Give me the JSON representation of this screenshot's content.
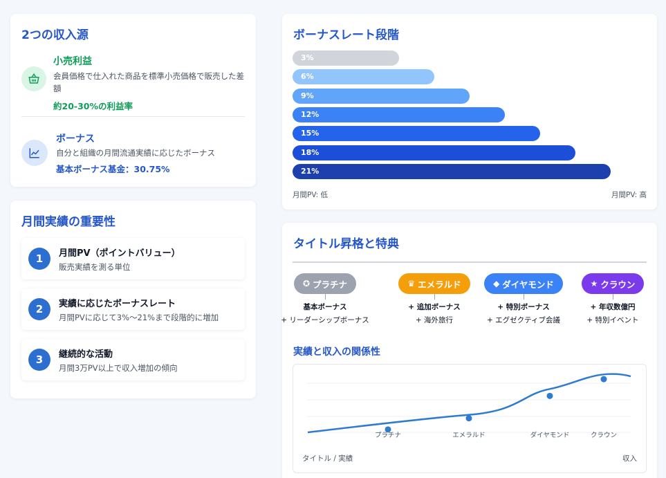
{
  "income": {
    "title": "2つの収入源",
    "retail": {
      "title": "小売利益",
      "desc": "会員価格で仕入れた商品を標準小売価格で販売した差額",
      "highlight": "約20-30%の利益率",
      "icon": "basket-icon",
      "color": "#0f9d58"
    },
    "bonus": {
      "title": "ボーナス",
      "desc": "自分と組織の月間流通実績に応じたボーナス",
      "highlight": "基本ボーナス基金：30.75%",
      "icon": "chart-line-icon",
      "color": "#2557c9"
    }
  },
  "importance": {
    "title": "月間実績の重要性",
    "steps": [
      {
        "num": "1",
        "title": "月間PV（ポイントバリュー）",
        "desc": "販売実績を測る単位"
      },
      {
        "num": "2",
        "title": "実績に応じたボーナスレート",
        "desc": "月間PVに応じて3%〜21%まで段階的に増加"
      },
      {
        "num": "3",
        "title": "継続的な活動",
        "desc": "月間3万PV以上で収入増加の傾向"
      }
    ]
  },
  "rates": {
    "title": "ボーナスレート段階",
    "axis_low": "月間PV: 低",
    "axis_high": "月間PV: 高",
    "bars": [
      {
        "label": "3%",
        "value": 3,
        "color": "#d1d5db"
      },
      {
        "label": "6%",
        "value": 6,
        "color": "#93c5fd"
      },
      {
        "label": "9%",
        "value": 9,
        "color": "#60a5fa"
      },
      {
        "label": "12%",
        "value": 12,
        "color": "#3b82f6"
      },
      {
        "label": "15%",
        "value": 15,
        "color": "#2563eb"
      },
      {
        "label": "18%",
        "value": 18,
        "color": "#1d4ed8"
      },
      {
        "label": "21%",
        "value": 21,
        "color": "#1e40af"
      }
    ]
  },
  "titles": {
    "title": "タイトル昇格と特典",
    "badges": [
      {
        "name": "プラチナ",
        "icon": "award-icon",
        "glyph": "✪",
        "color": "#9ca3af",
        "perk1": "基本ボーナス",
        "perk2": "+ リーダーシップボーナス"
      },
      {
        "name": "エメラルド",
        "icon": "crown-icon",
        "glyph": "♛",
        "color": "#f59e0b",
        "perk1": "+ 追加ボーナス",
        "perk2": "+ 海外旅行"
      },
      {
        "name": "ダイヤモンド",
        "icon": "gem-icon",
        "glyph": "◆",
        "color": "#3b82f6",
        "perk1": "+ 特別ボーナス",
        "perk2": "+ エグゼクティブ会議"
      },
      {
        "name": "クラウン",
        "icon": "star-icon",
        "glyph": "★",
        "color": "#7c3aed",
        "perk1": "+ 年収数億円",
        "perk2": "+ 特別イベント"
      }
    ],
    "relation_title": "実績と収入の関係性",
    "chart_data": {
      "type": "line",
      "x": [
        "プラチナ",
        "エメラルド",
        "ダイヤモンド",
        "クラウン"
      ],
      "xlabel": "タイトル / 実績",
      "ylabel": "収入",
      "series": [
        {
          "values": [
            1,
            2,
            4,
            5.5
          ]
        }
      ],
      "grid": true,
      "color": "#2f7bd0"
    }
  }
}
